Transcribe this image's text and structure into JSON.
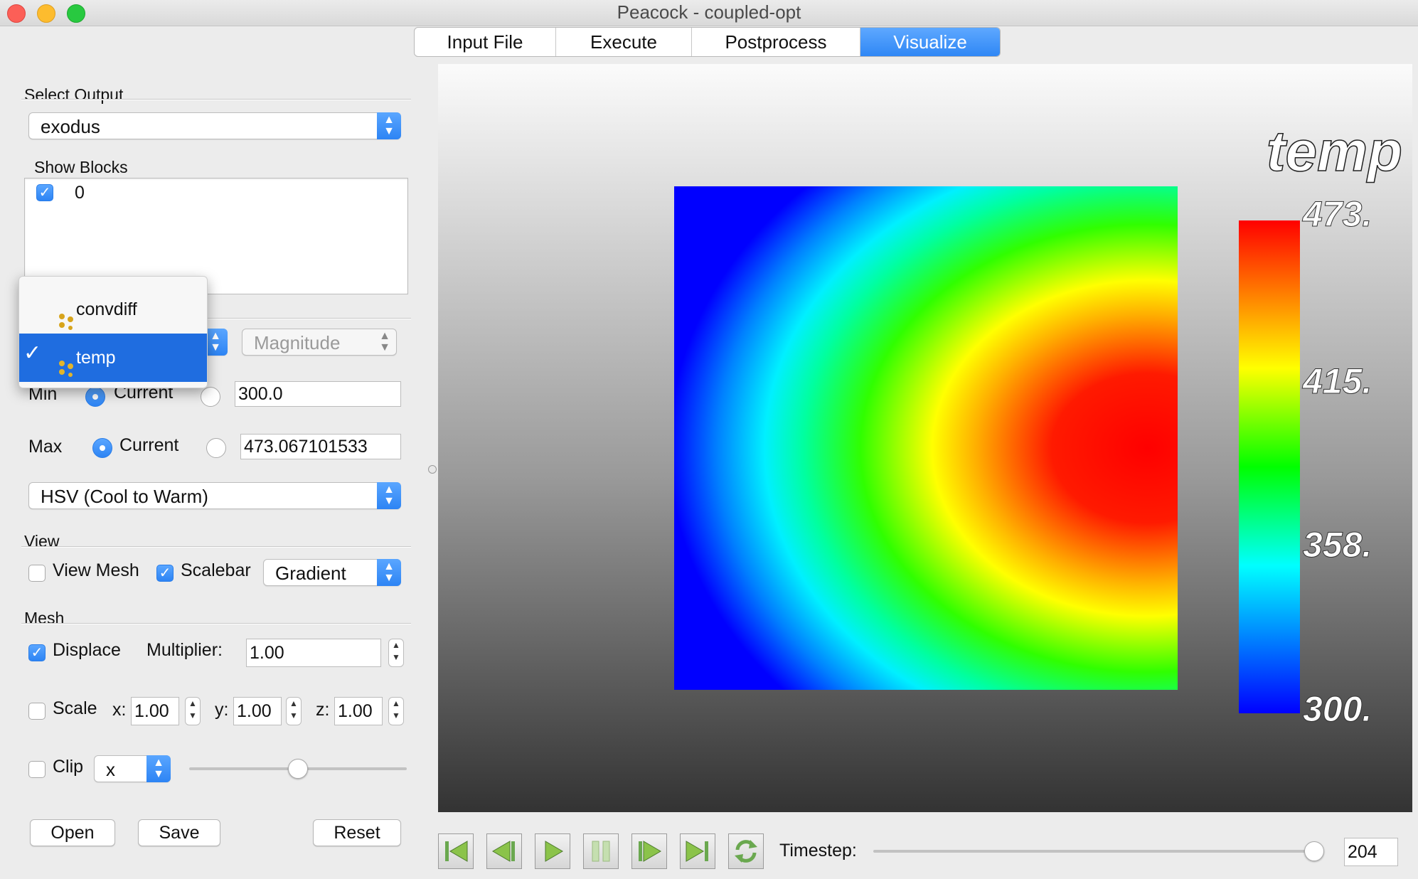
{
  "window": {
    "title": "Peacock - coupled-opt"
  },
  "tabs": [
    {
      "label": "Input File"
    },
    {
      "label": "Execute"
    },
    {
      "label": "Postprocess"
    },
    {
      "label": "Visualize",
      "active": true
    }
  ],
  "output": {
    "header": "Select Output",
    "value": "exodus"
  },
  "blocks": {
    "header": "Show Blocks",
    "items": [
      {
        "label": "0",
        "checked": true
      }
    ]
  },
  "variable": {
    "popup_items": [
      {
        "label": "convdiff",
        "selected": false
      },
      {
        "label": "temp",
        "selected": true
      }
    ],
    "component": "Magnitude"
  },
  "range": {
    "min_label": "Min",
    "min_current_label": "Current",
    "min_value": "300.0",
    "max_label": "Max",
    "max_current_label": "Current",
    "max_value": "473.067101533"
  },
  "colormap": {
    "value": "HSV (Cool to Warm)"
  },
  "view": {
    "header": "View",
    "view_mesh_label": "View Mesh",
    "view_mesh_checked": false,
    "scalebar_label": "Scalebar",
    "scalebar_checked": true,
    "background_value": "Gradient"
  },
  "mesh": {
    "header": "Mesh",
    "displace_label": "Displace",
    "displace_checked": true,
    "multiplier_label": "Multiplier:",
    "multiplier_value": "1.00",
    "scale_label": "Scale",
    "scale_checked": false,
    "x_label": "x:",
    "x_value": "1.00",
    "y_label": "y:",
    "y_value": "1.00",
    "z_label": "z:",
    "z_value": "1.00",
    "clip_label": "Clip",
    "clip_checked": false,
    "clip_axis": "x",
    "clip_slider_fraction": 0.5
  },
  "buttons": {
    "open": "Open",
    "save": "Save",
    "reset": "Reset"
  },
  "scalebar": {
    "title": "temp",
    "labels": [
      "473.",
      "415.",
      "358.",
      "300."
    ]
  },
  "playback": {
    "timestep_label": "Timestep:",
    "timestep_value": "204",
    "timestep_slider_fraction": 1.0,
    "icons": [
      "first-frame-icon",
      "step-back-icon",
      "play-icon",
      "pause-icon",
      "step-forward-icon",
      "last-frame-icon",
      "loop-icon"
    ]
  },
  "colors": {
    "accent": "#2f87f5",
    "selection": "#1f6de0",
    "close": "#fc5f57",
    "minimize": "#fdbc2e",
    "maximize": "#28c940"
  }
}
